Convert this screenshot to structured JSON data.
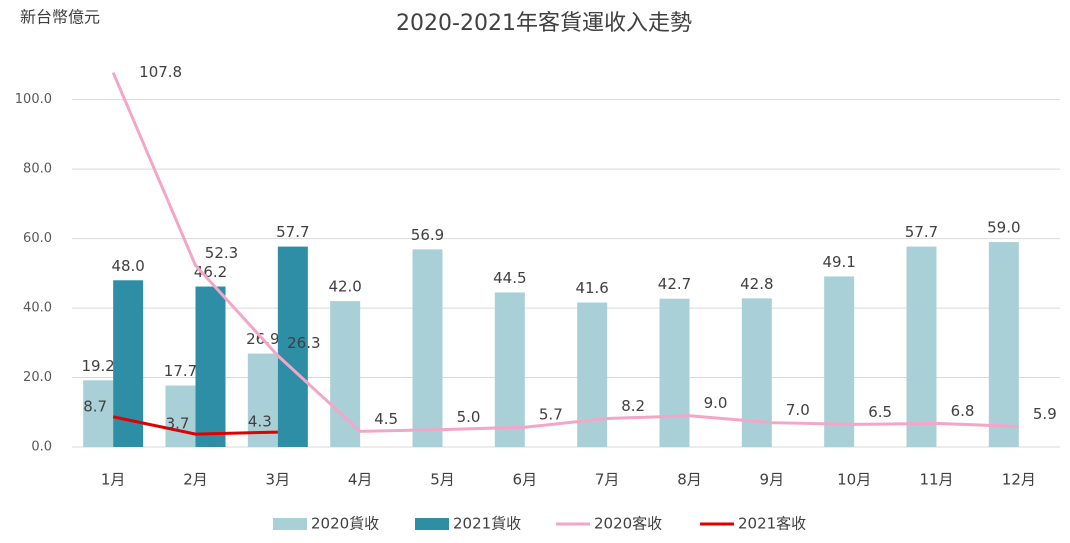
{
  "chart_data": {
    "type": "bar",
    "title": "2020-2021年客貨運收入走勢",
    "y_label": "新台幣億元",
    "categories": [
      "1月",
      "2月",
      "3月",
      "4月",
      "5月",
      "6月",
      "7月",
      "8月",
      "9月",
      "10月",
      "11月",
      "12月"
    ],
    "series": [
      {
        "name": "2020貨收",
        "type": "bar",
        "color": "#a9d0d6",
        "values": [
          19.2,
          17.7,
          26.9,
          42.0,
          56.9,
          44.5,
          41.6,
          42.7,
          42.8,
          49.1,
          57.7,
          59.0
        ],
        "value_labels": [
          "19.2",
          "17.7",
          "26.9",
          "42.0",
          "56.9",
          "44.5",
          "41.6",
          "42.7",
          "42.8",
          "49.1",
          "57.7",
          "59.0"
        ]
      },
      {
        "name": "2021貨收",
        "type": "bar",
        "color": "#2e8ea6",
        "values": [
          48.0,
          46.2,
          57.7,
          null,
          null,
          null,
          null,
          null,
          null,
          null,
          null,
          null
        ],
        "value_labels": [
          "48.0",
          "46.2",
          "57.7",
          null,
          null,
          null,
          null,
          null,
          null,
          null,
          null,
          null
        ]
      },
      {
        "name": "2020客收",
        "type": "line",
        "color": "#f4a6c8",
        "values": [
          107.8,
          52.3,
          26.3,
          4.5,
          5.0,
          5.7,
          8.2,
          9.0,
          7.0,
          6.5,
          6.8,
          5.9
        ],
        "value_labels": [
          "107.8",
          "52.3",
          "26.3",
          "4.5",
          "5.0",
          "5.7",
          "8.2",
          "9.0",
          "7.0",
          "6.5",
          "6.8",
          "5.9"
        ]
      },
      {
        "name": "2021客收",
        "type": "line",
        "color": "#e00000",
        "values": [
          8.7,
          3.7,
          4.3,
          null,
          null,
          null,
          null,
          null,
          null,
          null,
          null,
          null
        ],
        "value_labels": [
          "8.7",
          "3.7",
          "4.3",
          null,
          null,
          null,
          null,
          null,
          null,
          null,
          null,
          null
        ]
      }
    ],
    "ylim": [
      0,
      112
    ],
    "yticks": [
      {
        "value": 0,
        "label": "0.0"
      },
      {
        "value": 20,
        "label": "20.0"
      },
      {
        "value": 40,
        "label": "40.0"
      },
      {
        "value": 60,
        "label": "60.0"
      },
      {
        "value": 80,
        "label": "80.0"
      },
      {
        "value": 100,
        "label": "100.0"
      }
    ],
    "grid": true,
    "legend": "bottom"
  }
}
